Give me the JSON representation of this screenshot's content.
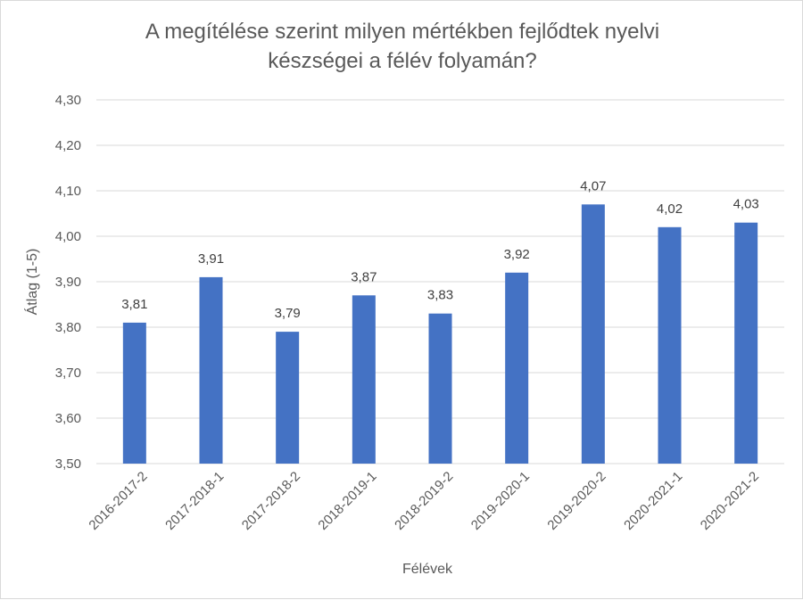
{
  "chart_data": {
    "type": "bar",
    "title_lines": [
      "A megítélése szerint milyen mértékben fejlődtek nyelvi",
      "készségei a félév folyamán?"
    ],
    "xlabel": "Félévek",
    "ylabel": "Átlag (1-5)",
    "ylim": [
      3.5,
      4.3
    ],
    "y_ticks": [
      "3,50",
      "3,60",
      "3,70",
      "3,80",
      "3,90",
      "4,00",
      "4,10",
      "4,20",
      "4,30"
    ],
    "categories": [
      "2016-2017-2",
      "2017-2018-1",
      "2017-2018-2",
      "2018-2019-1",
      "2018-2019-2",
      "2019-2020-1",
      "2019-2020-2",
      "2020-2021-1",
      "2020-2021-2"
    ],
    "values": [
      3.81,
      3.91,
      3.79,
      3.87,
      3.83,
      3.92,
      4.07,
      4.02,
      4.03
    ],
    "data_labels": [
      "3,81",
      "3,91",
      "3,79",
      "3,87",
      "3,83",
      "3,92",
      "4,07",
      "4,02",
      "4,03"
    ],
    "grid": true,
    "legend": "none",
    "colors": {
      "bar": "#4472C4",
      "grid": "#D9D9D9",
      "text": "#595959"
    }
  }
}
